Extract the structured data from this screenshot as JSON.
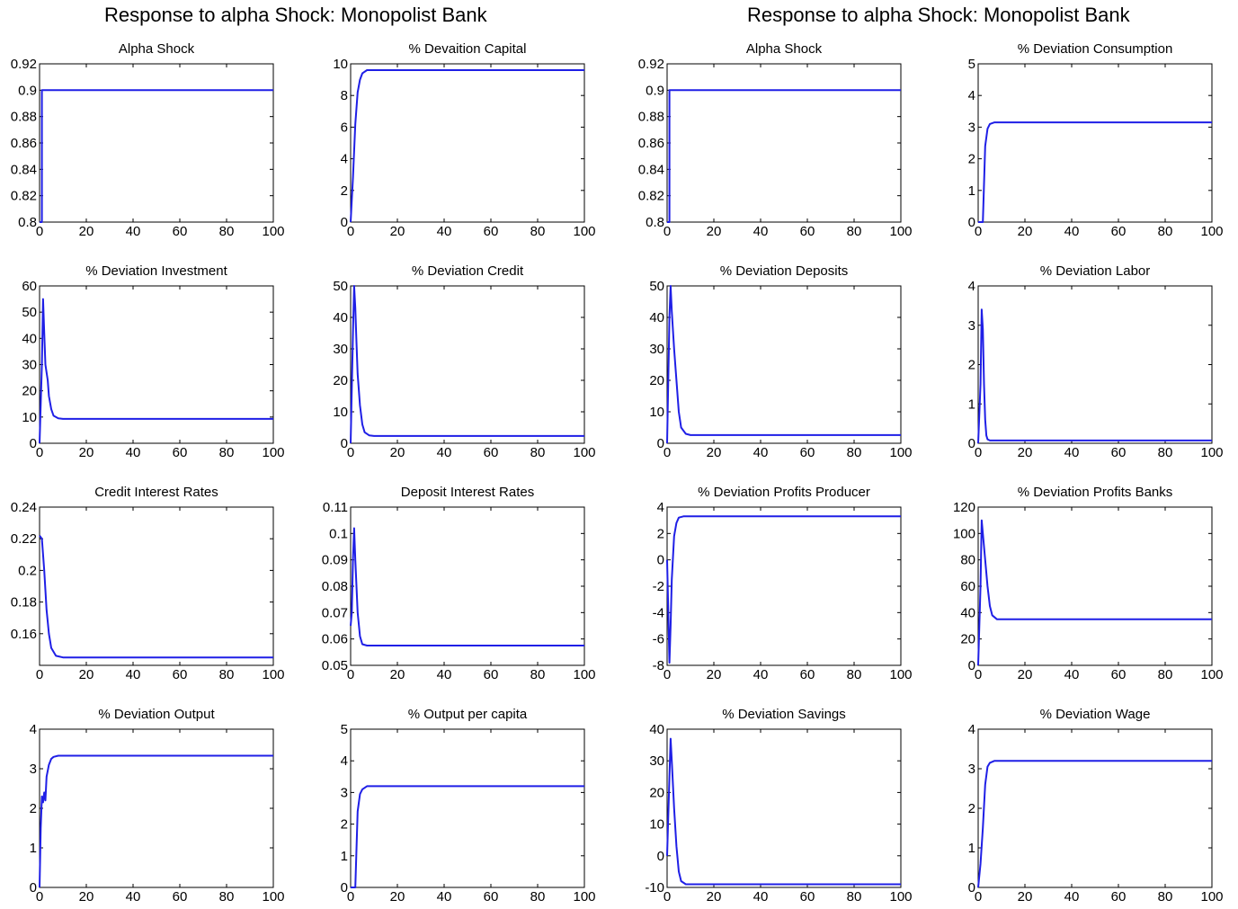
{
  "figures": [
    {
      "title": "Response to alpha Shock: Monopolist Bank"
    },
    {
      "title": "Response to alpha Shock: Monopolist Bank"
    }
  ],
  "colors": {
    "line": "#1f1fe6",
    "axis": "#000000",
    "background": "#ffffff"
  },
  "chart_data": [
    {
      "type": "line",
      "title": "Alpha Shock",
      "xlim": [
        0,
        100
      ],
      "ylim": [
        0.8,
        0.92
      ],
      "xticks": [
        "0",
        "20",
        "40",
        "60",
        "80",
        "100"
      ],
      "yticks": [
        "0.8",
        "0.82",
        "0.84",
        "0.86",
        "0.88",
        "0.9",
        "0.92"
      ],
      "x": [
        0,
        0.99,
        1,
        100
      ],
      "y": [
        0.8,
        0.8,
        0.9,
        0.9
      ]
    },
    {
      "type": "line",
      "title": "% Devaition Capital",
      "xlim": [
        0,
        100
      ],
      "ylim": [
        0,
        10
      ],
      "xticks": [
        "0",
        "20",
        "40",
        "60",
        "80",
        "100"
      ],
      "yticks": [
        "0",
        "2",
        "4",
        "6",
        "8",
        "10"
      ],
      "x": [
        0,
        1,
        2,
        3,
        4,
        5,
        7,
        10,
        100
      ],
      "y": [
        0,
        2.8,
        6.2,
        8.2,
        9.0,
        9.4,
        9.6,
        9.6,
        9.6
      ]
    },
    {
      "type": "line",
      "title": "Alpha Shock",
      "xlim": [
        0,
        100
      ],
      "ylim": [
        0.8,
        0.92
      ],
      "xticks": [
        "0",
        "20",
        "40",
        "60",
        "80",
        "100"
      ],
      "yticks": [
        "0.8",
        "0.82",
        "0.84",
        "0.86",
        "0.88",
        "0.9",
        "0.92"
      ],
      "x": [
        0,
        0.99,
        1,
        100
      ],
      "y": [
        0.8,
        0.8,
        0.9,
        0.9
      ]
    },
    {
      "type": "line",
      "title": "% Deviation Consumption",
      "xlim": [
        0,
        100
      ],
      "ylim": [
        0,
        5
      ],
      "xticks": [
        "0",
        "20",
        "40",
        "60",
        "80",
        "100"
      ],
      "yticks": [
        "0",
        "1",
        "2",
        "3",
        "4",
        "5"
      ],
      "x": [
        0,
        2,
        3,
        4,
        5,
        7,
        10,
        100
      ],
      "y": [
        0,
        0,
        2.4,
        2.95,
        3.1,
        3.15,
        3.15,
        3.15
      ]
    },
    {
      "type": "line",
      "title": "% Deviation Investment",
      "xlim": [
        0,
        100
      ],
      "ylim": [
        0,
        60
      ],
      "xticks": [
        "0",
        "20",
        "40",
        "60",
        "80",
        "100"
      ],
      "yticks": [
        "0",
        "10",
        "20",
        "30",
        "40",
        "50",
        "60"
      ],
      "x": [
        0,
        1,
        1.5,
        2,
        2.5,
        3,
        3.5,
        4,
        5,
        6,
        8,
        10,
        100
      ],
      "y": [
        0,
        30,
        55,
        42,
        30,
        27,
        24,
        18,
        13,
        10.5,
        9.5,
        9.3,
        9.3
      ]
    },
    {
      "type": "line",
      "title": "% Deviation Credit",
      "xlim": [
        0,
        100
      ],
      "ylim": [
        0,
        50
      ],
      "xticks": [
        "0",
        "20",
        "40",
        "60",
        "80",
        "100"
      ],
      "yticks": [
        "0",
        "10",
        "20",
        "30",
        "40",
        "50"
      ],
      "x": [
        0,
        1,
        1.5,
        2,
        2.5,
        3,
        4,
        5,
        6,
        8,
        10,
        100
      ],
      "y": [
        0,
        35,
        50,
        43,
        32,
        22,
        12,
        6,
        3.5,
        2.5,
        2.3,
        2.3
      ]
    },
    {
      "type": "line",
      "title": "% Deviation Deposits",
      "xlim": [
        0,
        100
      ],
      "ylim": [
        0,
        50
      ],
      "xticks": [
        "0",
        "20",
        "40",
        "60",
        "80",
        "100"
      ],
      "yticks": [
        "0",
        "10",
        "20",
        "30",
        "40",
        "50"
      ],
      "x": [
        0,
        1,
        1.5,
        2,
        3,
        4,
        5,
        6,
        8,
        10,
        100
      ],
      "y": [
        0,
        40,
        50,
        42,
        30,
        20,
        10,
        5,
        3,
        2.6,
        2.6
      ]
    },
    {
      "type": "line",
      "title": "% Deviation Labor",
      "xlim": [
        0,
        100
      ],
      "ylim": [
        0,
        4
      ],
      "xticks": [
        "0",
        "20",
        "40",
        "60",
        "80",
        "100"
      ],
      "yticks": [
        "0",
        "1",
        "2",
        "3",
        "4"
      ],
      "x": [
        0,
        1,
        1.5,
        2,
        2.5,
        3,
        3.5,
        4,
        5,
        7,
        100
      ],
      "y": [
        0,
        1.5,
        3.4,
        2.9,
        1.5,
        0.6,
        0.2,
        0.1,
        0.07,
        0.07,
        0.07
      ]
    },
    {
      "type": "line",
      "title": "Credit Interest Rates",
      "xlim": [
        0,
        100
      ],
      "ylim": [
        0.14,
        0.24
      ],
      "xticks": [
        "0",
        "20",
        "40",
        "60",
        "80",
        "100"
      ],
      "yticks": [
        "0.16",
        "0.18",
        "0.2",
        "0.22",
        "0.24"
      ],
      "x": [
        0,
        1,
        2,
        3,
        4,
        5,
        7,
        10,
        100
      ],
      "y": [
        0.222,
        0.22,
        0.2,
        0.175,
        0.16,
        0.151,
        0.146,
        0.145,
        0.145
      ]
    },
    {
      "type": "line",
      "title": "Deposit Interest Rates",
      "xlim": [
        0,
        100
      ],
      "ylim": [
        0.05,
        0.11
      ],
      "xticks": [
        "0",
        "20",
        "40",
        "60",
        "80",
        "100"
      ],
      "yticks": [
        "0.05",
        "0.06",
        "0.07",
        "0.08",
        "0.09",
        "0.1",
        "0.11"
      ],
      "x": [
        0,
        0.5,
        1,
        1.5,
        2,
        3,
        4,
        5,
        7,
        10,
        100
      ],
      "y": [
        0.065,
        0.07,
        0.09,
        0.102,
        0.09,
        0.07,
        0.061,
        0.058,
        0.0575,
        0.0575,
        0.0575
      ]
    },
    {
      "type": "line",
      "title": "% Deviation Profits Producer",
      "xlim": [
        0,
        100
      ],
      "ylim": [
        -8,
        4
      ],
      "xticks": [
        "0",
        "20",
        "40",
        "60",
        "80",
        "100"
      ],
      "yticks": [
        "-8",
        "-6",
        "-4",
        "-2",
        "0",
        "2",
        "4"
      ],
      "x": [
        0,
        1,
        1.5,
        2,
        3,
        4,
        5,
        7,
        10,
        100
      ],
      "y": [
        0,
        -7.8,
        -5,
        -1.5,
        1.8,
        2.8,
        3.2,
        3.3,
        3.3,
        3.3
      ]
    },
    {
      "type": "line",
      "title": "% Deviation Profits Banks",
      "xlim": [
        0,
        100
      ],
      "ylim": [
        0,
        120
      ],
      "xticks": [
        "0",
        "20",
        "40",
        "60",
        "80",
        "100"
      ],
      "yticks": [
        "0",
        "20",
        "40",
        "60",
        "80",
        "100",
        "120"
      ],
      "x": [
        0,
        1,
        1.5,
        2,
        3,
        4,
        5,
        6,
        8,
        10,
        100
      ],
      "y": [
        0,
        60,
        110,
        100,
        80,
        60,
        45,
        38,
        35,
        35,
        35
      ]
    },
    {
      "type": "line",
      "title": "% Deviation Output",
      "xlim": [
        0,
        100
      ],
      "ylim": [
        0,
        4
      ],
      "xticks": [
        "0",
        "20",
        "40",
        "60",
        "80",
        "100"
      ],
      "yticks": [
        "0",
        "1",
        "2",
        "3",
        "4"
      ],
      "x": [
        0,
        0.5,
        1,
        1.5,
        2,
        2.5,
        3,
        4,
        5,
        6,
        8,
        10,
        100
      ],
      "y": [
        0,
        1.5,
        2.3,
        2.15,
        2.4,
        2.2,
        2.8,
        3.1,
        3.25,
        3.3,
        3.33,
        3.33,
        3.33
      ]
    },
    {
      "type": "line",
      "title": "% Output per capita",
      "xlim": [
        0,
        100
      ],
      "ylim": [
        0,
        5
      ],
      "xticks": [
        "0",
        "20",
        "40",
        "60",
        "80",
        "100"
      ],
      "yticks": [
        "0",
        "1",
        "2",
        "3",
        "4",
        "5"
      ],
      "x": [
        0,
        2,
        3,
        4,
        5,
        7,
        10,
        100
      ],
      "y": [
        0,
        0,
        2.4,
        2.95,
        3.1,
        3.2,
        3.2,
        3.2
      ]
    },
    {
      "type": "line",
      "title": "% Deviation Savings",
      "xlim": [
        0,
        100
      ],
      "ylim": [
        -10,
        40
      ],
      "xticks": [
        "0",
        "20",
        "40",
        "60",
        "80",
        "100"
      ],
      "yticks": [
        "-10",
        "0",
        "10",
        "20",
        "30",
        "40"
      ],
      "x": [
        0,
        1,
        1.5,
        2,
        3,
        4,
        5,
        6,
        8,
        10,
        100
      ],
      "y": [
        0,
        25,
        37,
        30,
        15,
        3,
        -5,
        -8,
        -9,
        -9,
        -9
      ]
    },
    {
      "type": "line",
      "title": "% Deviation Wage",
      "xlim": [
        0,
        100
      ],
      "ylim": [
        0,
        4
      ],
      "xticks": [
        "0",
        "20",
        "40",
        "60",
        "80",
        "100"
      ],
      "yticks": [
        "0",
        "1",
        "2",
        "3",
        "4"
      ],
      "x": [
        0,
        1,
        2,
        3,
        4,
        5,
        7,
        10,
        100
      ],
      "y": [
        0,
        0.6,
        1.5,
        2.6,
        3.05,
        3.15,
        3.2,
        3.2,
        3.2
      ]
    }
  ]
}
